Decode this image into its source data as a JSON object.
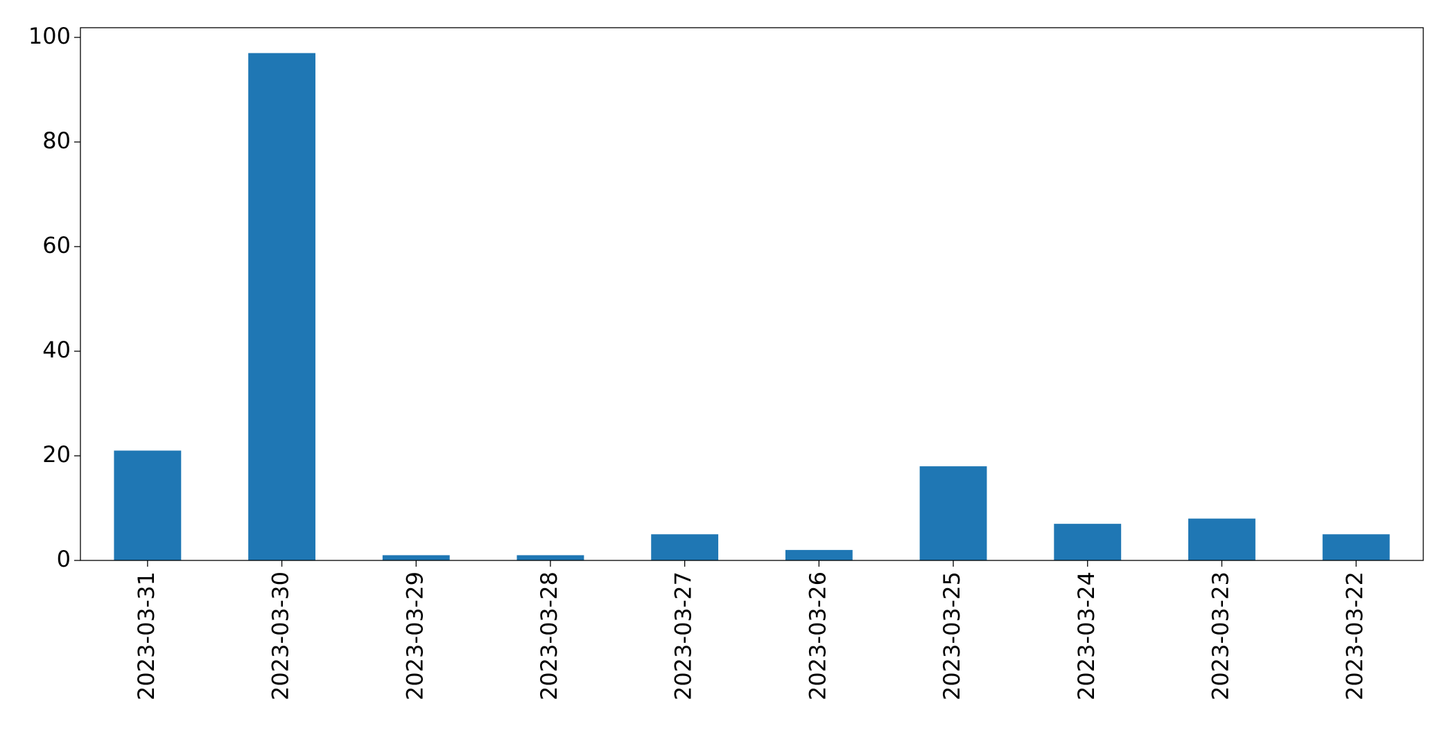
{
  "chart_data": {
    "type": "bar",
    "categories": [
      "2023-03-31",
      "2023-03-30",
      "2023-03-29",
      "2023-03-28",
      "2023-03-27",
      "2023-03-26",
      "2023-03-25",
      "2023-03-24",
      "2023-03-23",
      "2023-03-22"
    ],
    "values": [
      21,
      97,
      1,
      1,
      5,
      2,
      18,
      7,
      8,
      5
    ],
    "color": "#1f77b4",
    "ylim": [
      0,
      101.85
    ],
    "yticks": [
      0,
      20,
      40,
      60,
      80,
      100
    ],
    "grid": false
  }
}
